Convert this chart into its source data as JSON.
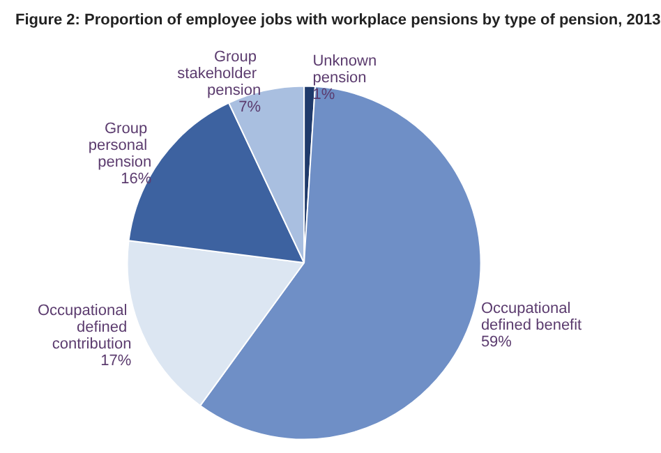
{
  "chart_data": {
    "type": "pie",
    "title": "Figure 2: Proportion of employee jobs with workplace pensions by type of pension, 2013",
    "categories": [
      "Unknown pension",
      "Occupational defined benefit",
      "Occupational defined contribution",
      "Group personal pension",
      "Group stakeholder pension"
    ],
    "values": [
      1,
      59,
      17,
      16,
      7
    ],
    "value_labels": [
      "1%",
      "59%",
      "17%",
      "16%",
      "7%"
    ],
    "colors": [
      "#1f3a6b",
      "#6f8fc6",
      "#dce6f2",
      "#3d62a0",
      "#a9bfe0"
    ]
  }
}
